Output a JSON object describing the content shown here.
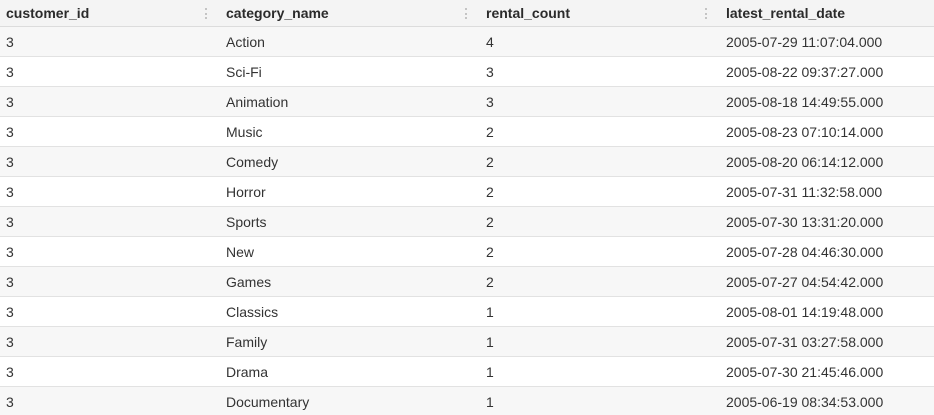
{
  "columns": [
    {
      "label": "customer_id"
    },
    {
      "label": "category_name"
    },
    {
      "label": "rental_count"
    },
    {
      "label": "latest_rental_date"
    }
  ],
  "rows": [
    {
      "customer_id": "3",
      "category_name": "Action",
      "rental_count": "4",
      "latest_rental_date": "2005-07-29 11:07:04.000"
    },
    {
      "customer_id": "3",
      "category_name": "Sci-Fi",
      "rental_count": "3",
      "latest_rental_date": "2005-08-22 09:37:27.000"
    },
    {
      "customer_id": "3",
      "category_name": "Animation",
      "rental_count": "3",
      "latest_rental_date": "2005-08-18 14:49:55.000"
    },
    {
      "customer_id": "3",
      "category_name": "Music",
      "rental_count": "2",
      "latest_rental_date": "2005-08-23 07:10:14.000"
    },
    {
      "customer_id": "3",
      "category_name": "Comedy",
      "rental_count": "2",
      "latest_rental_date": "2005-08-20 06:14:12.000"
    },
    {
      "customer_id": "3",
      "category_name": "Horror",
      "rental_count": "2",
      "latest_rental_date": "2005-07-31 11:32:58.000"
    },
    {
      "customer_id": "3",
      "category_name": "Sports",
      "rental_count": "2",
      "latest_rental_date": "2005-07-30 13:31:20.000"
    },
    {
      "customer_id": "3",
      "category_name": "New",
      "rental_count": "2",
      "latest_rental_date": "2005-07-28 04:46:30.000"
    },
    {
      "customer_id": "3",
      "category_name": "Games",
      "rental_count": "2",
      "latest_rental_date": "2005-07-27 04:54:42.000"
    },
    {
      "customer_id": "3",
      "category_name": "Classics",
      "rental_count": "1",
      "latest_rental_date": "2005-08-01 14:19:48.000"
    },
    {
      "customer_id": "3",
      "category_name": "Family",
      "rental_count": "1",
      "latest_rental_date": "2005-07-31 03:27:58.000"
    },
    {
      "customer_id": "3",
      "category_name": "Drama",
      "rental_count": "1",
      "latest_rental_date": "2005-07-30 21:45:46.000"
    },
    {
      "customer_id": "3",
      "category_name": "Documentary",
      "rental_count": "1",
      "latest_rental_date": "2005-06-19 08:34:53.000"
    }
  ]
}
